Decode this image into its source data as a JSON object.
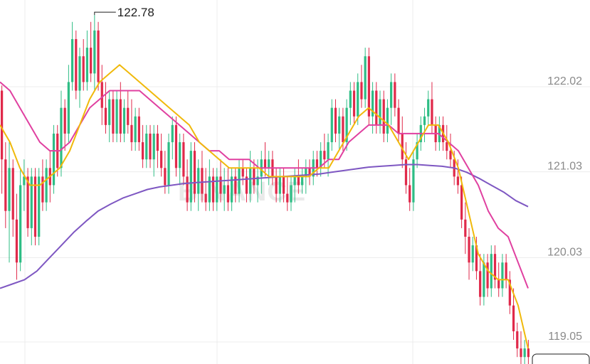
{
  "chart_data": {
    "type": "candlestick",
    "title": "",
    "watermark": "BINANCE",
    "y_ticks": [
      "122.02",
      "121.03",
      "120.03",
      "119.05"
    ],
    "y_tick_values": [
      122.02,
      121.03,
      120.03,
      119.05
    ],
    "ylim": [
      118.75,
      123.0
    ],
    "high_marker": {
      "label": "122.78",
      "value": 122.78,
      "candle_index": 25
    },
    "grid": true,
    "colors": {
      "up": "#2ebd85",
      "down": "#e0294a",
      "ma_short": "#f0b90b",
      "ma_mid": "#e040a0",
      "ma_long": "#7e57c2",
      "grid": "#ececec",
      "axis_text": "#8a8a8a"
    },
    "candles": [
      [
        121.9,
        121.96,
        120.7,
        121.1
      ],
      [
        121.1,
        121.3,
        120.3,
        120.5
      ],
      [
        120.5,
        121.3,
        119.9,
        121.0
      ],
      [
        121.0,
        121.1,
        120.2,
        120.4
      ],
      [
        120.4,
        120.7,
        119.7,
        119.9
      ],
      [
        119.9,
        121.0,
        119.8,
        120.8
      ],
      [
        120.8,
        121.1,
        120.5,
        120.9
      ],
      [
        120.9,
        121.0,
        120.2,
        120.3
      ],
      [
        120.3,
        121.0,
        120.1,
        120.9
      ],
      [
        120.9,
        121.0,
        120.1,
        120.2
      ],
      [
        120.2,
        121.0,
        120.1,
        120.9
      ],
      [
        120.9,
        121.1,
        120.5,
        120.6
      ],
      [
        120.6,
        121.1,
        120.5,
        121.0
      ],
      [
        121.0,
        121.2,
        120.6,
        120.8
      ],
      [
        120.8,
        121.5,
        120.7,
        121.4
      ],
      [
        121.4,
        121.5,
        120.9,
        121.0
      ],
      [
        121.0,
        121.9,
        120.9,
        121.7
      ],
      [
        121.7,
        121.8,
        121.2,
        121.4
      ],
      [
        121.4,
        122.2,
        121.3,
        122.0
      ],
      [
        122.0,
        122.7,
        121.9,
        122.5
      ],
      [
        122.5,
        122.6,
        121.8,
        121.9
      ],
      [
        121.9,
        122.4,
        121.7,
        122.3
      ],
      [
        122.3,
        122.5,
        121.9,
        122.0
      ],
      [
        122.0,
        122.6,
        121.9,
        122.4
      ],
      [
        122.4,
        122.7,
        122.0,
        122.1
      ],
      [
        122.1,
        122.78,
        121.9,
        122.6
      ],
      [
        122.6,
        122.7,
        121.9,
        122.0
      ],
      [
        122.0,
        122.2,
        121.5,
        121.7
      ],
      [
        121.7,
        122.0,
        121.4,
        121.5
      ],
      [
        121.5,
        121.9,
        121.3,
        121.8
      ],
      [
        121.8,
        121.9,
        121.3,
        121.4
      ],
      [
        121.4,
        121.9,
        121.3,
        121.8
      ],
      [
        121.8,
        122.0,
        121.3,
        121.4
      ],
      [
        121.4,
        121.8,
        121.3,
        121.7
      ],
      [
        121.7,
        121.9,
        121.4,
        121.5
      ],
      [
        121.5,
        121.8,
        121.2,
        121.3
      ],
      [
        121.3,
        121.7,
        121.2,
        121.6
      ],
      [
        121.6,
        121.7,
        121.2,
        121.3
      ],
      [
        121.3,
        121.5,
        121.0,
        121.1
      ],
      [
        121.1,
        121.5,
        121.0,
        121.4
      ],
      [
        121.4,
        121.5,
        121.0,
        121.1
      ],
      [
        121.1,
        121.5,
        120.9,
        121.4
      ],
      [
        121.4,
        121.5,
        121.0,
        121.2
      ],
      [
        121.2,
        121.4,
        120.9,
        121.0
      ],
      [
        121.0,
        121.2,
        120.7,
        120.8
      ],
      [
        120.8,
        121.4,
        120.7,
        121.3
      ],
      [
        121.3,
        121.6,
        121.1,
        121.5
      ],
      [
        121.5,
        121.6,
        120.9,
        121.0
      ],
      [
        121.0,
        121.4,
        120.8,
        121.3
      ],
      [
        121.3,
        121.4,
        120.8,
        120.9
      ],
      [
        120.9,
        121.1,
        120.5,
        120.6
      ],
      [
        120.6,
        121.3,
        120.5,
        121.2
      ],
      [
        121.2,
        121.3,
        120.6,
        120.7
      ],
      [
        120.7,
        121.1,
        120.5,
        121.0
      ],
      [
        121.0,
        121.2,
        120.6,
        120.7
      ],
      [
        120.7,
        121.0,
        120.5,
        120.6
      ],
      [
        120.6,
        121.1,
        120.5,
        120.9
      ],
      [
        120.9,
        121.0,
        120.5,
        120.6
      ],
      [
        120.6,
        121.0,
        120.5,
        120.9
      ],
      [
        120.9,
        121.1,
        120.6,
        120.7
      ],
      [
        120.7,
        121.0,
        120.5,
        120.8
      ],
      [
        120.8,
        121.0,
        120.5,
        120.6
      ],
      [
        120.6,
        121.0,
        120.5,
        120.9
      ],
      [
        120.9,
        121.0,
        120.6,
        120.7
      ],
      [
        120.7,
        121.1,
        120.6,
        121.0
      ],
      [
        121.0,
        121.1,
        120.8,
        120.9
      ],
      [
        120.9,
        121.0,
        120.6,
        120.7
      ],
      [
        120.7,
        121.2,
        120.6,
        121.0
      ],
      [
        121.0,
        121.1,
        120.7,
        120.8
      ],
      [
        120.8,
        121.1,
        120.6,
        120.9
      ],
      [
        120.9,
        121.2,
        120.7,
        121.1
      ],
      [
        121.1,
        121.3,
        120.9,
        121.0
      ],
      [
        121.0,
        121.2,
        120.8,
        121.1
      ],
      [
        121.1,
        121.2,
        120.8,
        120.9
      ],
      [
        120.9,
        121.0,
        120.6,
        120.7
      ],
      [
        120.7,
        121.0,
        120.6,
        120.9
      ],
      [
        120.9,
        121.0,
        120.6,
        120.7
      ],
      [
        120.7,
        120.9,
        120.5,
        120.6
      ],
      [
        120.6,
        120.9,
        120.5,
        120.8
      ],
      [
        120.8,
        121.0,
        120.6,
        120.9
      ],
      [
        120.9,
        121.1,
        120.7,
        120.8
      ],
      [
        120.8,
        121.0,
        120.7,
        120.9
      ],
      [
        120.9,
        121.1,
        120.7,
        121.0
      ],
      [
        121.0,
        121.1,
        120.8,
        120.9
      ],
      [
        120.9,
        121.2,
        120.8,
        121.1
      ],
      [
        121.1,
        121.2,
        120.9,
        121.0
      ],
      [
        121.0,
        121.3,
        120.9,
        121.2
      ],
      [
        121.2,
        121.4,
        121.0,
        121.1
      ],
      [
        121.1,
        121.4,
        120.9,
        121.3
      ],
      [
        121.3,
        121.8,
        121.2,
        121.7
      ],
      [
        121.7,
        121.8,
        121.3,
        121.4
      ],
      [
        121.4,
        121.7,
        121.2,
        121.6
      ],
      [
        121.6,
        121.7,
        121.2,
        121.3
      ],
      [
        121.3,
        121.8,
        121.2,
        121.7
      ],
      [
        121.7,
        122.0,
        121.5,
        121.9
      ],
      [
        121.9,
        122.0,
        121.5,
        121.6
      ],
      [
        121.6,
        122.1,
        121.5,
        122.0
      ],
      [
        122.0,
        122.2,
        121.7,
        121.8
      ],
      [
        121.8,
        122.4,
        121.7,
        122.3
      ],
      [
        122.3,
        122.4,
        121.5,
        121.6
      ],
      [
        121.6,
        122.0,
        121.4,
        121.9
      ],
      [
        121.9,
        122.0,
        121.4,
        121.5
      ],
      [
        121.5,
        121.9,
        121.4,
        121.8
      ],
      [
        121.8,
        121.9,
        121.3,
        121.4
      ],
      [
        121.4,
        121.8,
        121.3,
        121.7
      ],
      [
        121.7,
        122.1,
        121.5,
        122.0
      ],
      [
        122.0,
        122.1,
        121.6,
        121.7
      ],
      [
        121.7,
        121.8,
        121.3,
        121.4
      ],
      [
        121.4,
        121.6,
        121.0,
        121.1
      ],
      [
        121.1,
        121.3,
        120.7,
        120.8
      ],
      [
        120.8,
        121.0,
        120.5,
        120.6
      ],
      [
        120.6,
        121.2,
        120.5,
        121.1
      ],
      [
        121.1,
        121.4,
        121.0,
        121.3
      ],
      [
        121.3,
        121.6,
        121.2,
        121.5
      ],
      [
        121.5,
        121.7,
        121.3,
        121.6
      ],
      [
        121.6,
        121.9,
        121.5,
        121.8
      ],
      [
        121.8,
        122.0,
        121.4,
        121.5
      ],
      [
        121.5,
        121.6,
        121.2,
        121.3
      ],
      [
        121.3,
        121.6,
        121.2,
        121.5
      ],
      [
        121.5,
        121.6,
        121.2,
        121.3
      ],
      [
        121.3,
        121.5,
        121.1,
        121.2
      ],
      [
        121.2,
        121.4,
        121.0,
        121.1
      ],
      [
        121.1,
        121.2,
        120.8,
        120.9
      ],
      [
        120.9,
        121.1,
        120.7,
        120.8
      ],
      [
        120.8,
        120.9,
        120.3,
        120.4
      ],
      [
        120.4,
        120.6,
        120.0,
        120.2
      ],
      [
        120.2,
        120.3,
        119.7,
        119.9
      ],
      [
        119.9,
        120.2,
        119.8,
        120.1
      ],
      [
        120.1,
        120.2,
        119.7,
        119.8
      ],
      [
        119.8,
        120.0,
        119.4,
        119.5
      ],
      [
        119.5,
        120.0,
        119.4,
        119.9
      ],
      [
        119.9,
        120.0,
        119.5,
        119.6
      ],
      [
        119.6,
        120.1,
        119.5,
        120.0
      ],
      [
        120.0,
        120.1,
        119.6,
        119.7
      ],
      [
        119.7,
        119.9,
        119.5,
        119.6
      ],
      [
        119.6,
        120.0,
        119.5,
        119.9
      ],
      [
        119.9,
        120.0,
        119.6,
        119.7
      ],
      [
        119.7,
        119.8,
        119.3,
        119.4
      ],
      [
        119.4,
        119.6,
        119.0,
        119.1
      ],
      [
        119.1,
        119.2,
        118.8,
        118.9
      ],
      [
        118.9,
        119.1,
        118.7,
        118.8
      ],
      [
        118.8,
        119.0,
        118.7,
        118.9
      ],
      [
        118.9,
        119.0,
        118.7,
        118.8
      ]
    ],
    "ma_short": [
      121.5,
      121.3,
      121.0,
      120.8,
      120.8,
      120.9,
      121.0,
      121.2,
      121.5,
      121.8,
      122.0,
      122.1,
      122.2,
      122.1,
      122.0,
      121.9,
      121.8,
      121.7,
      121.6,
      121.5,
      121.3,
      121.2,
      121.1,
      121.0,
      121.0,
      121.0,
      121.0,
      120.9,
      120.9,
      120.9,
      120.9,
      120.9,
      121.0,
      121.0,
      121.2,
      121.4,
      121.6,
      121.7,
      121.6,
      121.5,
      121.3,
      121.1,
      121.3,
      121.5,
      121.5,
      121.3,
      121.0,
      120.5,
      120.0,
      119.8,
      119.7,
      119.7,
      119.4,
      118.9
    ],
    "ma_mid": [
      122.0,
      121.9,
      121.7,
      121.5,
      121.3,
      121.2,
      121.2,
      121.3,
      121.5,
      121.7,
      121.8,
      121.9,
      121.9,
      121.9,
      121.9,
      121.8,
      121.7,
      121.6,
      121.5,
      121.4,
      121.3,
      121.2,
      121.2,
      121.1,
      121.1,
      121.1,
      121.0,
      121.0,
      121.0,
      121.0,
      121.0,
      121.0,
      121.0,
      121.1,
      121.1,
      121.3,
      121.4,
      121.5,
      121.5,
      121.5,
      121.4,
      121.4,
      121.4,
      121.4,
      121.4,
      121.3,
      121.2,
      121.0,
      120.8,
      120.5,
      120.3,
      120.2,
      119.9,
      119.6
    ],
    "ma_long": [
      119.6,
      119.65,
      119.7,
      119.8,
      119.95,
      120.1,
      120.25,
      120.38,
      120.5,
      120.58,
      120.65,
      120.7,
      120.75,
      120.78,
      120.8,
      120.82,
      120.83,
      120.84,
      120.85,
      120.86,
      120.87,
      120.88,
      120.89,
      120.9,
      120.91,
      120.92,
      120.93,
      120.95,
      120.97,
      120.99,
      121.01,
      121.02,
      121.03,
      121.04,
      121.04,
      121.03,
      121.02,
      121.0,
      120.95,
      120.88,
      120.8,
      120.72,
      120.62,
      120.55
    ]
  }
}
